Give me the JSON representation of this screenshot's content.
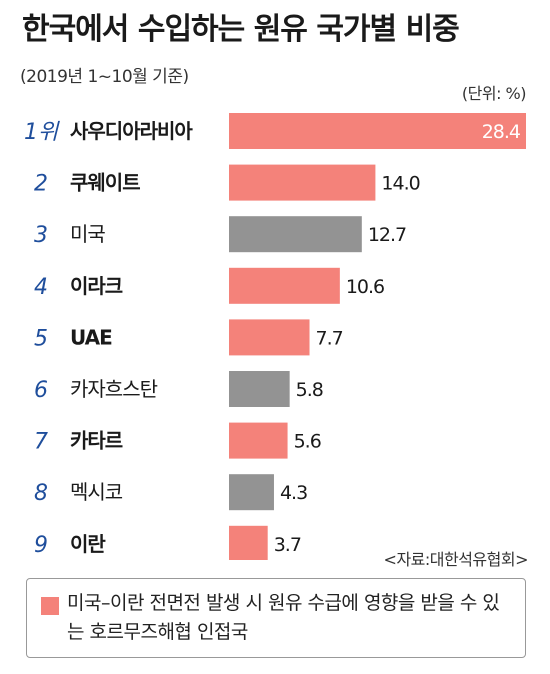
{
  "title": "한국에서 수입하는 원유 국가별 비중",
  "subtitle": "(2019년 1~10월 기준)",
  "unit": "(단위: %)",
  "source": "<자료:대한석유협회>",
  "legend": {
    "text": "미국–이란 전면전 발생 시 원유 수급에 영향을 받을 수 있는 호르무즈해협 인접국",
    "color": "#f4827a"
  },
  "colors": {
    "hormuz": "#f4827a",
    "other": "#939393",
    "rank": "#1f4e9c"
  },
  "chart_data": {
    "type": "bar",
    "orientation": "horizontal",
    "title": "한국에서 수입하는 원유 국가별 비중",
    "subtitle": "(2019년 1~10월 기준)",
    "unit": "%",
    "ranks": [
      "1위",
      "2",
      "3",
      "4",
      "5",
      "6",
      "7",
      "8",
      "9"
    ],
    "categories": [
      "사우디아라비아",
      "쿠웨이트",
      "미국",
      "이라크",
      "UAE",
      "카자흐스탄",
      "카타르",
      "멕시코",
      "이란"
    ],
    "values": [
      28.4,
      14.0,
      12.7,
      10.6,
      7.7,
      5.8,
      5.6,
      4.3,
      3.7
    ],
    "value_labels": [
      "28.4",
      "14.0",
      "12.7",
      "10.6",
      "7.7",
      "5.8",
      "5.6",
      "4.3",
      "3.7"
    ],
    "hormuz_adjacent": [
      true,
      true,
      false,
      true,
      true,
      false,
      true,
      false,
      true
    ],
    "xlim": [
      0,
      28.4
    ]
  }
}
